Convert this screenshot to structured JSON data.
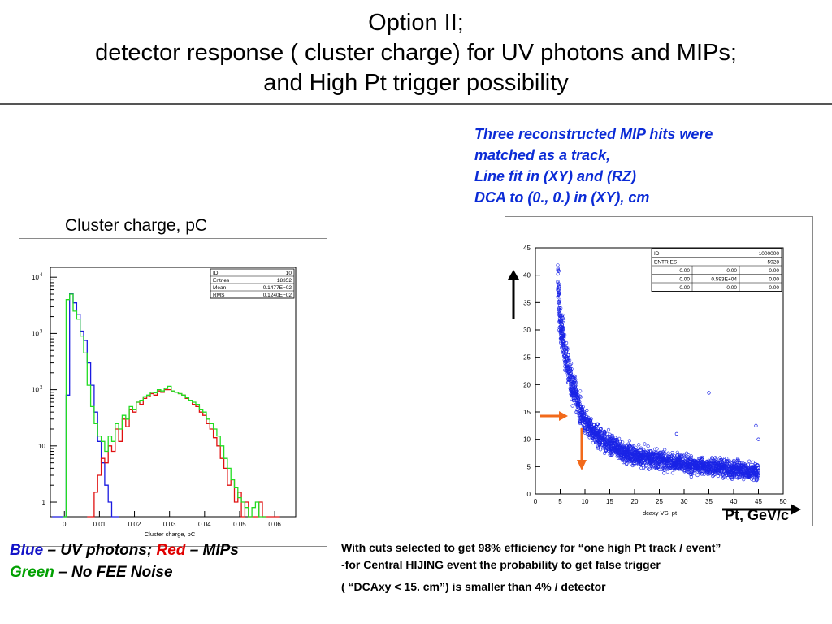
{
  "slide": {
    "title_line1": "Option II;",
    "title_line2": "detector response ( cluster charge) for UV photons and MIPs;",
    "title_line3": "and High Pt trigger possibility",
    "cluster_charge_label": "Cluster charge, pC",
    "mip_description": [
      "Three reconstructed MIP hits were",
      "matched as a track,",
      "Line fit in (XY) and (RZ)",
      "DCA to (0., 0.) in (XY), cm"
    ],
    "legend": {
      "blue": "Blue",
      "blue_text": " – UV photons;  ",
      "red": "Red",
      "red_text": " – MIPs",
      "green": "Green",
      "green_text": " – No FEE Noise"
    },
    "cuts_text": [
      "With cuts selected to get 98% efficiency for “one high Pt track / event”",
      "for Central HIJING event the probability to get false trigger",
      "( “DCAxy < 15. cm”)  is smaller than 4% / detector"
    ],
    "cuts_dash": "-",
    "pt_label": "Pt, GeV/c",
    "colors": {
      "blue_text": "#1414c8",
      "red_text": "#e00000",
      "green_text": "#00a000",
      "description_text": "#0b2bd6",
      "arrow_orange": "#f26a1b",
      "hist_blue": "#1a1ae0",
      "hist_red": "#e01010",
      "hist_green": "#22dd22",
      "scatter_blue": "#1a24e6"
    }
  },
  "chart_data": [
    {
      "type": "histogram",
      "xlabel": "Cluster charge, pC",
      "y_log": true,
      "xlim": [
        -0.004,
        0.066
      ],
      "ylim": [
        0.55,
        15000
      ],
      "xticks": [
        0,
        0.01,
        0.02,
        0.03,
        0.04,
        0.05,
        0.06
      ],
      "xtick_labels": [
        "0",
        "0.01",
        "0.02",
        "0.03",
        "0.04",
        "0.05",
        "0.06"
      ],
      "yticks": [
        1,
        10,
        100,
        1000,
        10000
      ],
      "ytick_labels": [
        "1",
        "10",
        "10^2",
        "10^3",
        "10^4"
      ],
      "stats_box": [
        [
          "ID",
          "10"
        ],
        [
          "Entries",
          "18352"
        ],
        [
          "Mean",
          "0.1477E−02"
        ],
        [
          "RMS",
          "0.1240E−02"
        ]
      ],
      "series": [
        {
          "color": "#1a1ae0",
          "x": [
            -0.003,
            -0.002,
            -0.001,
            0.0,
            0.001,
            0.002,
            0.003,
            0.004,
            0.005,
            0.006,
            0.007,
            0.008,
            0.009,
            0.01,
            0.011,
            0.012,
            0.013,
            0.014,
            0.015
          ],
          "values": [
            0.5,
            0.5,
            0.5,
            0.5,
            80,
            5200,
            3500,
            2200,
            1100,
            750,
            300,
            120,
            40,
            12,
            5,
            2,
            1,
            0.5,
            0.5
          ]
        },
        {
          "color": "#e01010",
          "x": [
            0.007,
            0.008,
            0.009,
            0.01,
            0.011,
            0.012,
            0.013,
            0.014,
            0.015,
            0.016,
            0.017,
            0.018,
            0.019,
            0.02,
            0.021,
            0.022,
            0.023,
            0.024,
            0.025,
            0.026,
            0.027,
            0.028,
            0.029,
            0.03,
            0.031,
            0.032,
            0.033,
            0.034,
            0.035,
            0.036,
            0.037,
            0.038,
            0.039,
            0.04,
            0.041,
            0.042,
            0.043,
            0.044,
            0.045,
            0.046,
            0.047,
            0.048,
            0.049,
            0.05,
            0.051,
            0.052,
            0.053,
            0.054,
            0.055,
            0.056,
            0.057,
            0.058,
            0.059,
            0.06,
            0.061
          ],
          "values": [
            0.5,
            0.5,
            1.5,
            3,
            6,
            5,
            10,
            8,
            20,
            12,
            30,
            22,
            45,
            40,
            60,
            55,
            70,
            75,
            85,
            80,
            95,
            90,
            100,
            100,
            95,
            90,
            85,
            80,
            70,
            65,
            55,
            50,
            40,
            35,
            25,
            20,
            14,
            10,
            6,
            4,
            2,
            2.5,
            1,
            1.5,
            0.5,
            1,
            0.5,
            0.5,
            0.5,
            1,
            0.5,
            0.5,
            0.5,
            0.5,
            0.5
          ]
        },
        {
          "color": "#22dd22",
          "x": [
            0.0,
            0.001,
            0.002,
            0.003,
            0.004,
            0.005,
            0.006,
            0.007,
            0.008,
            0.009,
            0.01,
            0.011,
            0.012,
            0.013,
            0.014,
            0.015,
            0.016,
            0.017,
            0.018,
            0.019,
            0.02,
            0.021,
            0.022,
            0.023,
            0.024,
            0.025,
            0.026,
            0.027,
            0.028,
            0.029,
            0.03,
            0.031,
            0.032,
            0.033,
            0.034,
            0.035,
            0.036,
            0.037,
            0.038,
            0.039,
            0.04,
            0.041,
            0.042,
            0.043,
            0.044,
            0.045,
            0.046,
            0.047,
            0.048,
            0.049,
            0.05,
            0.051,
            0.052,
            0.053,
            0.054,
            0.055,
            0.056,
            0.057
          ],
          "values": [
            0.5,
            4000,
            5000,
            2500,
            1800,
            900,
            450,
            120,
            50,
            25,
            15,
            12,
            8,
            15,
            12,
            25,
            20,
            35,
            30,
            50,
            45,
            60,
            65,
            75,
            80,
            90,
            88,
            100,
            95,
            105,
            115,
            95,
            90,
            85,
            80,
            72,
            65,
            60,
            55,
            45,
            40,
            30,
            25,
            20,
            15,
            10,
            6,
            4,
            2.5,
            1.8,
            1.2,
            1,
            0.8,
            0.5,
            0.8,
            1,
            0.5,
            0.5
          ]
        }
      ]
    },
    {
      "type": "scatter",
      "xlabel": "dcaxy VS. pt",
      "xlim": [
        0,
        50
      ],
      "ylim": [
        0,
        45
      ],
      "xticks": [
        0,
        5,
        10,
        15,
        20,
        25,
        30,
        35,
        40,
        45,
        50
      ],
      "yticks": [
        0,
        5,
        10,
        15,
        20,
        25,
        30,
        35,
        40,
        45
      ],
      "stats_box": [
        [
          "ID",
          "",
          "1000000"
        ],
        [
          "ENTRIES",
          "",
          "5928"
        ],
        [
          "0.00",
          "0.00",
          "0.00"
        ],
        [
          "0.00",
          "0.593E+04",
          "0.00"
        ],
        [
          "0.00",
          "0.00",
          "0.00"
        ]
      ],
      "band_curve": {
        "x": [
          4.5,
          5,
          6,
          7,
          8,
          9,
          10,
          12,
          14,
          16,
          18,
          20,
          22,
          25,
          28,
          31,
          34,
          37,
          40,
          43,
          45
        ],
        "y": [
          39,
          32,
          26,
          21,
          18.5,
          15.5,
          13.5,
          11,
          9.5,
          8.5,
          7.7,
          7.2,
          6.7,
          6.2,
          5.8,
          5.4,
          5.1,
          4.8,
          4.5,
          4.2,
          4.0
        ]
      },
      "outliers": [
        {
          "x": 35,
          "y": 18.5
        },
        {
          "x": 44.5,
          "y": 12.5
        },
        {
          "x": 28.5,
          "y": 11
        },
        {
          "x": 45,
          "y": 10
        }
      ],
      "point_count_drawn": 2400
    }
  ]
}
